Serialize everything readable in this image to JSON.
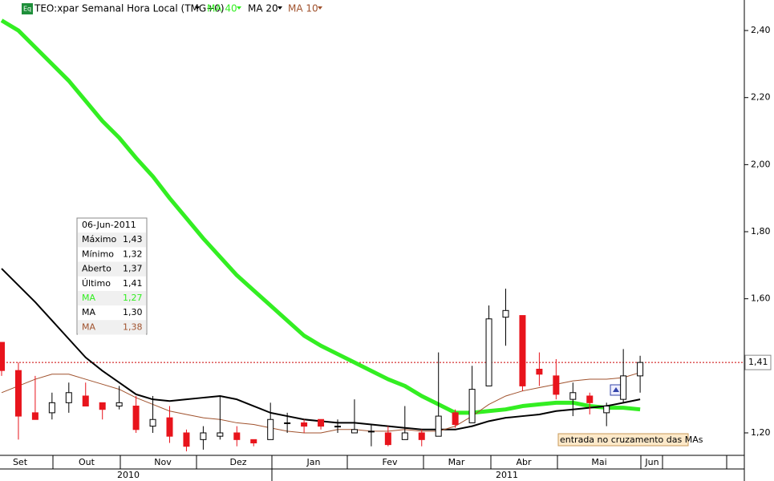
{
  "chart_data": {
    "type": "candlestick",
    "title": "TEO:xpar Semanal Hora Local (TMG+0)",
    "categories": [
      null,
      null,
      null,
      null,
      null,
      null,
      null,
      null,
      null,
      null,
      null,
      null,
      null,
      null,
      null,
      null,
      null,
      null,
      null,
      null,
      null,
      null,
      null,
      null,
      null,
      null,
      null,
      null,
      null,
      null,
      null,
      null,
      null,
      null,
      null,
      null,
      null,
      null,
      null
    ],
    "open": [
      1.47,
      1.386,
      1.26,
      1.26,
      1.29,
      1.31,
      1.29,
      1.28,
      1.28,
      1.22,
      1.245,
      1.2,
      1.18,
      1.19,
      1.2,
      1.18,
      1.18,
      1.23,
      1.23,
      1.24,
      1.22,
      1.2,
      1.205,
      1.2,
      1.18,
      1.2,
      1.19,
      1.26,
      1.23,
      1.34,
      1.545,
      1.55,
      1.39,
      1.37,
      1.3,
      1.31,
      1.26,
      1.3,
      1.37
    ],
    "high": [
      1.47,
      1.41,
      1.37,
      1.32,
      1.35,
      1.35,
      1.29,
      1.34,
      1.31,
      1.31,
      1.28,
      1.21,
      1.22,
      1.31,
      1.22,
      1.18,
      1.29,
      1.26,
      1.24,
      1.24,
      1.24,
      1.3,
      1.225,
      1.22,
      1.28,
      1.21,
      1.44,
      1.27,
      1.4,
      1.58,
      1.63,
      1.55,
      1.44,
      1.42,
      1.35,
      1.32,
      1.29,
      1.45,
      1.43
    ],
    "low": [
      1.37,
      1.18,
      1.24,
      1.24,
      1.26,
      1.28,
      1.24,
      1.27,
      1.2,
      1.2,
      1.17,
      1.145,
      1.15,
      1.18,
      1.16,
      1.16,
      1.18,
      1.2,
      1.2,
      1.21,
      1.2,
      1.2,
      1.16,
      1.16,
      1.18,
      1.16,
      1.19,
      1.215,
      1.23,
      1.34,
      1.46,
      1.325,
      1.34,
      1.3,
      1.25,
      1.255,
      1.22,
      1.29,
      1.32
    ],
    "close": [
      1.386,
      1.25,
      1.24,
      1.29,
      1.32,
      1.28,
      1.27,
      1.29,
      1.21,
      1.24,
      1.19,
      1.16,
      1.2,
      1.2,
      1.18,
      1.17,
      1.24,
      1.23,
      1.22,
      1.22,
      1.22,
      1.21,
      1.205,
      1.165,
      1.2,
      1.18,
      1.25,
      1.225,
      1.33,
      1.54,
      1.565,
      1.34,
      1.375,
      1.315,
      1.32,
      1.29,
      1.28,
      1.37,
      1.41
    ],
    "up_color": "#ffffff",
    "down_color": "#e8141c",
    "series": [
      {
        "name": "MA 40",
        "color": "#33ee22",
        "values": [
          2.43,
          2.4,
          2.35,
          2.3,
          2.25,
          2.19,
          2.13,
          2.08,
          2.02,
          1.965,
          1.9,
          1.84,
          1.78,
          1.725,
          1.67,
          1.625,
          1.58,
          1.535,
          1.49,
          1.46,
          1.435,
          1.41,
          1.385,
          1.36,
          1.34,
          1.31,
          1.285,
          1.26,
          1.26,
          1.265,
          1.27,
          1.28,
          1.285,
          1.29,
          1.29,
          1.28,
          1.275,
          1.275,
          1.27
        ]
      },
      {
        "name": "MA 20",
        "color": "#000000",
        "values": [
          1.69,
          1.64,
          1.59,
          1.535,
          1.48,
          1.425,
          1.385,
          1.35,
          1.315,
          1.3,
          1.295,
          1.3,
          1.305,
          1.31,
          1.3,
          1.28,
          1.26,
          1.25,
          1.24,
          1.235,
          1.23,
          1.23,
          1.225,
          1.22,
          1.215,
          1.21,
          1.21,
          1.21,
          1.22,
          1.235,
          1.245,
          1.25,
          1.255,
          1.265,
          1.27,
          1.275,
          1.28,
          1.29,
          1.3
        ]
      },
      {
        "name": "MA 10",
        "color": "#a0522d",
        "values": [
          1.32,
          1.34,
          1.36,
          1.375,
          1.375,
          1.36,
          1.345,
          1.33,
          1.305,
          1.285,
          1.265,
          1.255,
          1.245,
          1.24,
          1.23,
          1.225,
          1.215,
          1.205,
          1.2,
          1.2,
          1.21,
          1.21,
          1.205,
          1.205,
          1.21,
          1.205,
          1.205,
          1.22,
          1.25,
          1.285,
          1.31,
          1.325,
          1.335,
          1.345,
          1.355,
          1.36,
          1.36,
          1.365,
          1.38
        ]
      }
    ],
    "ylim": [
      1.133,
      2.491
    ],
    "yticks": [
      {
        "value": 1.2,
        "label": "1,20"
      },
      {
        "value": 1.6,
        "label": "1,60"
      },
      {
        "value": 1.8,
        "label": "1,80"
      },
      {
        "value": 2.0,
        "label": "2,00"
      },
      {
        "value": 2.2,
        "label": "2,20"
      },
      {
        "value": 2.4,
        "label": "2,40"
      }
    ],
    "last_price": {
      "value": 1.41,
      "label": "1,41"
    },
    "months": [
      "Set",
      "Out",
      "Nov",
      "Dez",
      "Jan",
      "Fev",
      "Mar",
      "Abr",
      "Mai",
      "Jun"
    ],
    "years": [
      "2010",
      "2011"
    ],
    "annotation": "entrada no cruzamento das MAs",
    "info_box": {
      "date": "06-Jun-2011",
      "rows": [
        [
          "Máximo",
          "1,43"
        ],
        [
          "Mínimo",
          "1,32"
        ],
        [
          "Aberto",
          "1,37"
        ],
        [
          "Último",
          "1,41"
        ],
        [
          "MA",
          "1,27"
        ],
        [
          "MA",
          "1,30"
        ],
        [
          "MA",
          "1,38"
        ]
      ]
    }
  }
}
